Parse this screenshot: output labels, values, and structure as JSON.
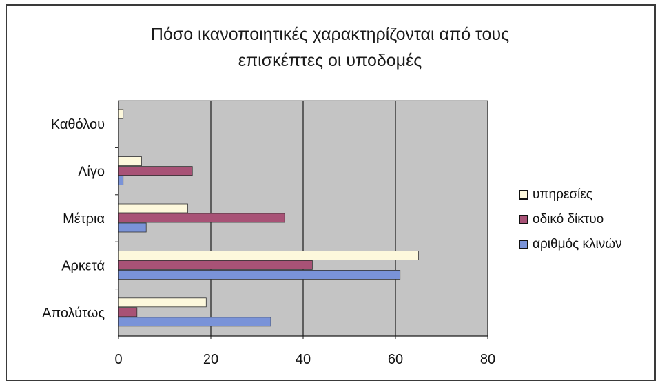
{
  "chart_data": {
    "type": "bar",
    "orientation": "horizontal",
    "title_lines": [
      "Πόσο ικανοποιητικές χαρακτηρίζονται από τους",
      "επισκέπτες οι υποδομές"
    ],
    "categories": [
      "Καθόλου",
      "Λίγο",
      "Μέτρια",
      "Αρκετά",
      "Απολύτως"
    ],
    "series": [
      {
        "name": "υπηρεσίες",
        "values": [
          1,
          5,
          15,
          65,
          19
        ],
        "color": "#fdf8dc"
      },
      {
        "name": "οδικό δίκτυο",
        "values": [
          0,
          16,
          36,
          42,
          4
        ],
        "color": "#a85276"
      },
      {
        "name": "αριθμός κλινών",
        "values": [
          0,
          1,
          6,
          61,
          33
        ],
        "color": "#7a93d8"
      }
    ],
    "xlim": [
      0,
      80
    ],
    "xticks": [
      "0",
      "20",
      "40",
      "60",
      "80"
    ],
    "grid": "vertical",
    "legend_position": "right",
    "plot_background": "#c4c4c4"
  }
}
